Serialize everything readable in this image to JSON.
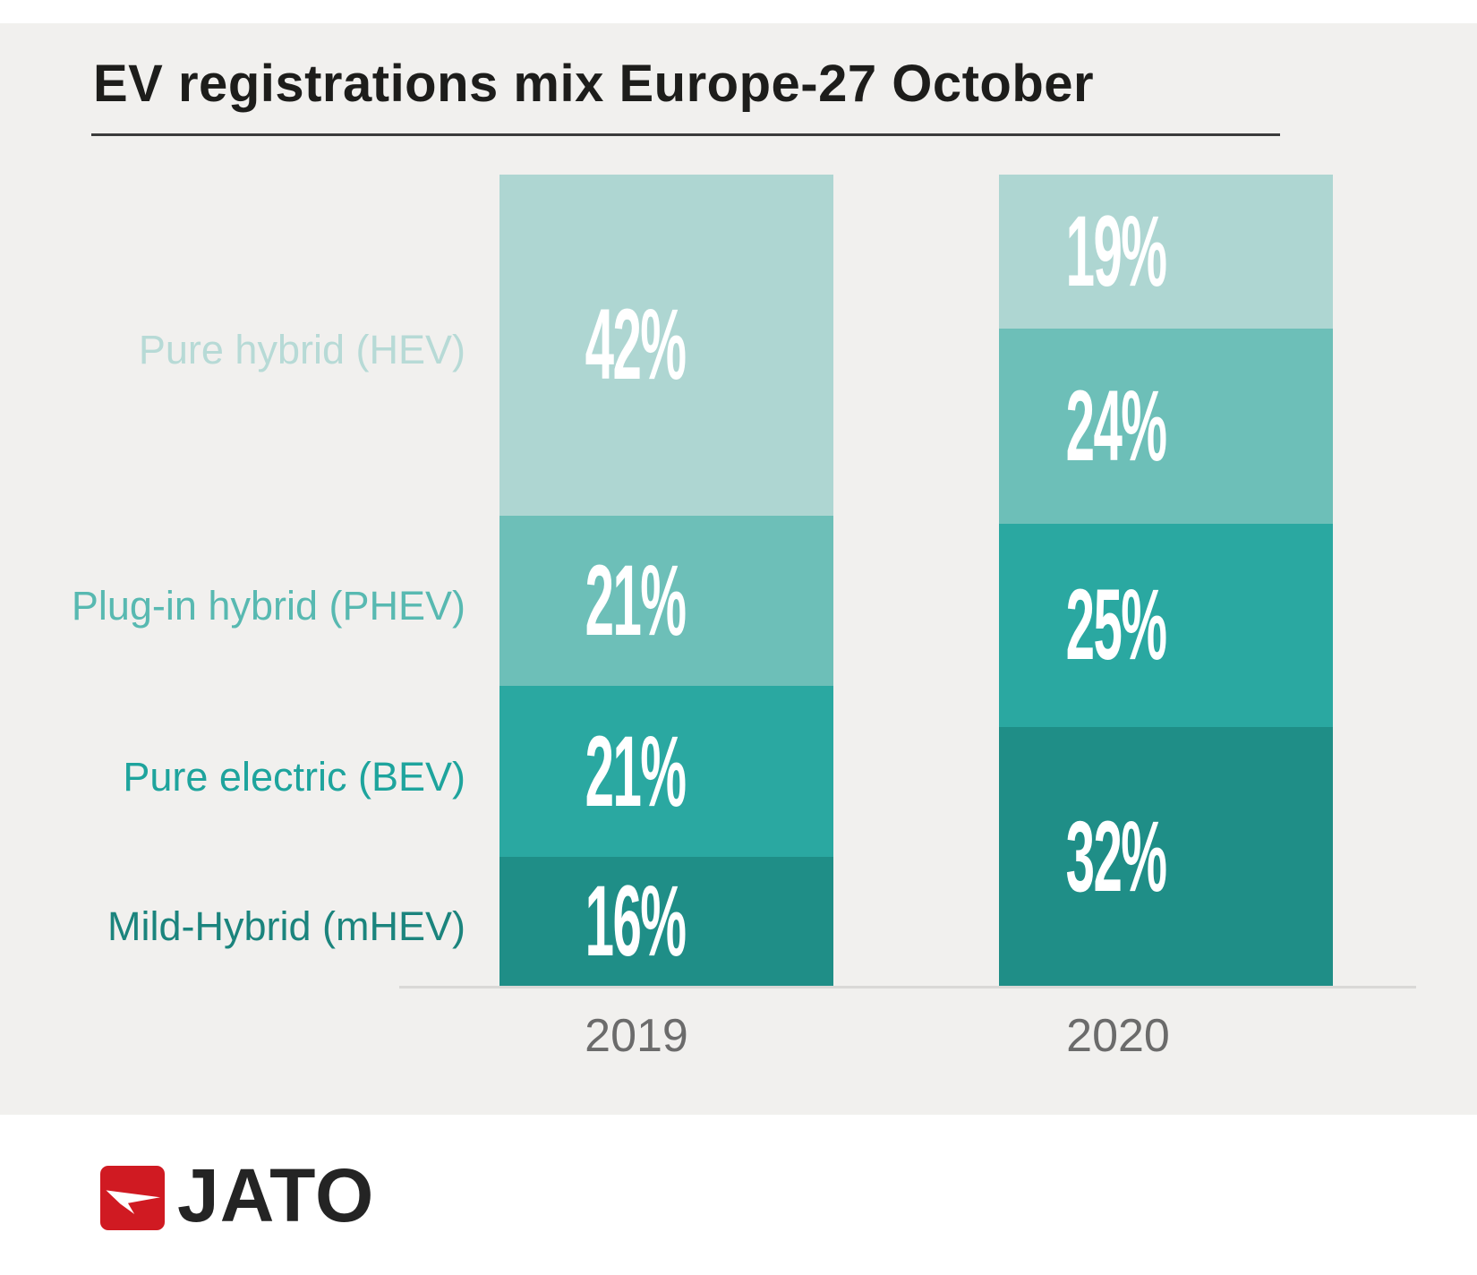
{
  "page": {
    "background": "#f1f0ee"
  },
  "header": {
    "title": "EV registrations mix Europe-27 October"
  },
  "chart_data": {
    "type": "bar",
    "stacked": true,
    "orientation": "vertical",
    "title": "EV registrations mix Europe-27 October",
    "categories": [
      "Pure hybrid (HEV)",
      "Plug-in hybrid (PHEV)",
      "Pure electric (BEV)",
      "Mild-Hybrid (mHEV)"
    ],
    "x": [
      "2019",
      "2020"
    ],
    "series": [
      {
        "name": "2019",
        "values": [
          42,
          21,
          21,
          16
        ]
      },
      {
        "name": "2020",
        "values": [
          19,
          24,
          25,
          32
        ]
      }
    ],
    "value_format": "percent",
    "value_label_color": "#ffffff",
    "segment_colors": [
      "#aed6d2",
      "#6dbfb8",
      "#2aa8a1",
      "#1f8e87"
    ],
    "category_label_colors": [
      "#b7dad6",
      "#58b9b1",
      "#1ea49d",
      "#1b847d"
    ],
    "axis_line_color": "#d9d8d6",
    "x_label_color": "#6b6b6b",
    "legend_position": "left",
    "grid": false,
    "ylim": [
      0,
      100
    ]
  },
  "footer": {
    "brand_name": "JATO",
    "brand_red": "#d01a22"
  }
}
